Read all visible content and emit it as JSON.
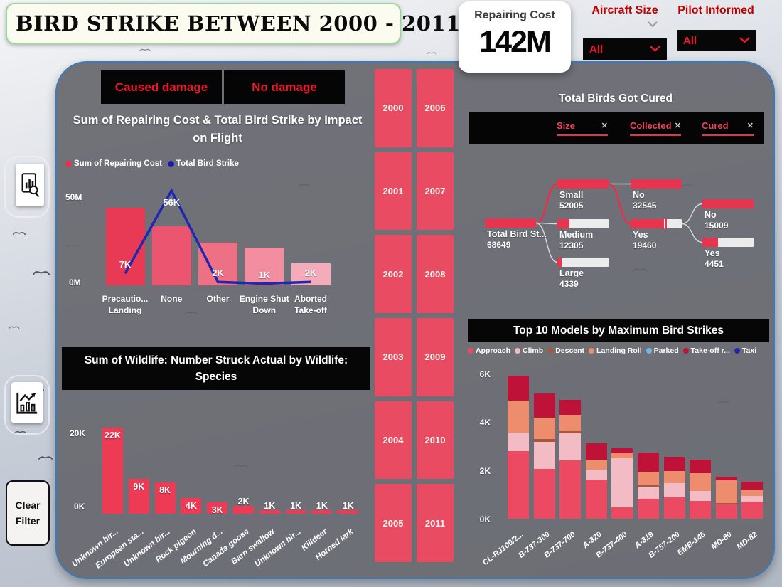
{
  "page_title": "BIRD STRIKE BETWEEN 2000 - 2011",
  "kpi": {
    "label": "Repairing Cost",
    "value": "142M"
  },
  "slicers": {
    "aircraft_size": {
      "label": "Aircraft Size",
      "value": "All"
    },
    "pilot_informed": {
      "label": "Pilot Informed",
      "value": "All"
    }
  },
  "damage_filter": {
    "caused": "Caused damage",
    "no_damage": "No damage"
  },
  "left_toolbar": {
    "clear_filter": "Clear Filter"
  },
  "years": [
    "2000",
    "2001",
    "2002",
    "2003",
    "2004",
    "2005",
    "2006",
    "2007",
    "2008",
    "2009",
    "2010",
    "2011"
  ],
  "colors": {
    "accent_red": "#E8304C",
    "year_tile": "#E94B62",
    "slicer_text": "#E8192C",
    "label_red": "#C00000",
    "line_blue": "#1E28B0",
    "panel_border": "#3D7AB8",
    "tree_bar": "#E8354F",
    "tree_empty": "#ECECEC"
  },
  "chart_data": [
    {
      "id": "impact_on_flight",
      "type": "combo-bar-line",
      "title": "Sum of Repairing Cost & Total Bird Strike by Impact on Flight",
      "legend": [
        {
          "name": "Sum of Repairing Cost",
          "color": "#E8304C"
        },
        {
          "name": "Total Bird Strike",
          "color": "#1B1BA8"
        }
      ],
      "categories": [
        "Precautio...\nLanding",
        "None",
        "Other",
        "Engine Shut\nDown",
        "Aborted\nTake-off"
      ],
      "bar_series_name": "Sum of Repairing Cost",
      "bar_values_M": [
        46,
        35,
        25.5,
        22.5,
        13
      ],
      "bar_colors": [
        "#E93A55",
        "#EC5570",
        "#EE7085",
        "#F28EA0",
        "#F5ACBA"
      ],
      "line_series_name": "Total Bird Strike",
      "line_values_K": [
        7,
        56,
        2,
        1,
        2
      ],
      "line_labels": [
        "7K",
        "56K",
        "2K",
        "1K",
        "2K"
      ],
      "y_ticks": [
        "50M",
        "0M"
      ],
      "y_range_M": [
        0,
        50
      ]
    },
    {
      "id": "wildlife_species",
      "type": "bar",
      "title": "Sum of Wildlife: Number Struck Actual by Wildlife: Species",
      "categories": [
        "Unknown bir...",
        "European sta...",
        "Unknown bir...",
        "Rock pigeon",
        "Mourning d...",
        "Canada goose",
        "Barn swallow",
        "Unknown bir...",
        "Killdeer",
        "Horned lark"
      ],
      "values_K": [
        22,
        9,
        8,
        4,
        3,
        2,
        1,
        1,
        1,
        1
      ],
      "labels": [
        "22K",
        "9K",
        "8K",
        "4K",
        "3K",
        "2K",
        "1K",
        "1K",
        "1K",
        "1K"
      ],
      "y_ticks": [
        "20K",
        "0K"
      ],
      "bar_color": "#ED3A55"
    },
    {
      "id": "birds_cured_tree",
      "type": "decomposition-tree",
      "title": "Total Birds Got Cured",
      "breadcrumbs": [
        "Size",
        "Collected",
        "Cured"
      ],
      "remove_glyph": "✕",
      "nodes": [
        {
          "name": "Total Bird St...",
          "value": "68649",
          "fill": 1
        },
        {
          "name": "Small",
          "value": "52005",
          "fill": 1
        },
        {
          "name": "Medium",
          "value": "12305",
          "fill": 0.24
        },
        {
          "name": "Large",
          "value": "4339",
          "fill": 0.085
        },
        {
          "name": "No",
          "value": "32545",
          "fill": 1
        },
        {
          "name": "Yes",
          "value": "19460",
          "fill": 0.62,
          "stripe": true
        },
        {
          "name": "No",
          "value": "15009",
          "fill": 1
        },
        {
          "name": "Yes",
          "value": "4451",
          "fill": 0.3
        }
      ],
      "links": [
        {
          "from": 0,
          "to": 1,
          "highlight": true
        },
        {
          "from": 0,
          "to": 2
        },
        {
          "from": 0,
          "to": 3
        },
        {
          "from": 1,
          "to": 4
        },
        {
          "from": 1,
          "to": 5,
          "highlight": true
        },
        {
          "from": 5,
          "to": 6
        },
        {
          "from": 5,
          "to": 7
        }
      ]
    },
    {
      "id": "top10_models",
      "type": "stacked-bar",
      "title": "Top 10 Models by Maximum Bird Strikes",
      "legend": [
        {
          "name": "Approach",
          "color": "#EC4A62"
        },
        {
          "name": "Climb",
          "color": "#F3BCC4"
        },
        {
          "name": "Descent",
          "color": "#A9573B"
        },
        {
          "name": "Landing Roll",
          "color": "#ED8D6E"
        },
        {
          "name": "Parked",
          "color": "#6FB8EA"
        },
        {
          "name": "Take-off r...",
          "color": "#BE1238"
        },
        {
          "name": "Taxi",
          "color": "#1B2AA6"
        }
      ],
      "categories": [
        "CL-RJ100/2...",
        "B-737-300",
        "B-737-700",
        "A-320",
        "B-737-400",
        "A-319",
        "B-757-200",
        "EMB-145",
        "MD-80",
        "MD-82"
      ],
      "series": {
        "Approach": [
          2.8,
          2.06,
          2.42,
          1.62,
          0.47,
          0.82,
          0.88,
          0.74,
          0.59,
          0.7
        ],
        "Climb": [
          0.77,
          1.12,
          1.12,
          0.41,
          2.03,
          0.5,
          0.59,
          0.41,
          0,
          0.24
        ],
        "Descent": [
          0,
          0.12,
          0.09,
          0,
          0,
          0.09,
          0,
          0,
          0.06,
          0
        ],
        "Landing Roll": [
          1.3,
          0.88,
          0.65,
          0.41,
          0.21,
          0.53,
          0.5,
          0.74,
          0.94,
          0.26
        ],
        "Parked": [
          0,
          0,
          0,
          0,
          0,
          0,
          0,
          0,
          0,
          0
        ],
        "Take-off r...": [
          1.03,
          1.0,
          0.62,
          0.68,
          0.2,
          0.8,
          0.59,
          0.56,
          0.15,
          0.32
        ],
        "Taxi": [
          0,
          0,
          0,
          0,
          0,
          0,
          0,
          0,
          0,
          0
        ]
      },
      "stack_order": [
        "Approach",
        "Climb",
        "Descent",
        "Landing Roll",
        "Parked",
        "Take-off r...",
        "Taxi"
      ],
      "y_ticks": [
        "6K",
        "4K",
        "2K",
        "0K"
      ],
      "y_range_K": [
        0,
        6
      ]
    }
  ]
}
